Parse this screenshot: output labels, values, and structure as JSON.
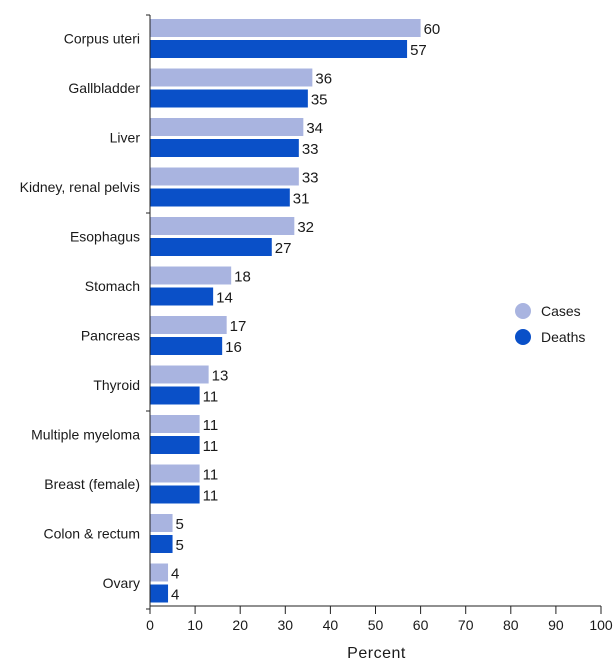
{
  "chart_data": {
    "type": "bar",
    "orientation": "horizontal",
    "categories": [
      "Corpus uteri",
      "Gallbladder",
      "Liver",
      "Kidney, renal pelvis",
      "Esophagus",
      "Stomach",
      "Pancreas",
      "Thyroid",
      "Multiple myeloma",
      "Breast (female)",
      "Colon & rectum",
      "Ovary"
    ],
    "series": [
      {
        "name": "Cases",
        "color": "#a9b4e0",
        "values": [
          60,
          36,
          34,
          33,
          32,
          18,
          17,
          13,
          11,
          11,
          5,
          4
        ]
      },
      {
        "name": "Deaths",
        "color": "#0a50c8",
        "values": [
          57,
          35,
          33,
          31,
          27,
          14,
          16,
          11,
          11,
          11,
          5,
          4
        ]
      }
    ],
    "xlabel": "Percent",
    "ylabel": "",
    "xlim": [
      0,
      100
    ],
    "xticks": [
      0,
      10,
      20,
      30,
      40,
      50,
      60,
      70,
      80,
      90,
      100
    ],
    "grid": false,
    "legend_position": "right"
  }
}
